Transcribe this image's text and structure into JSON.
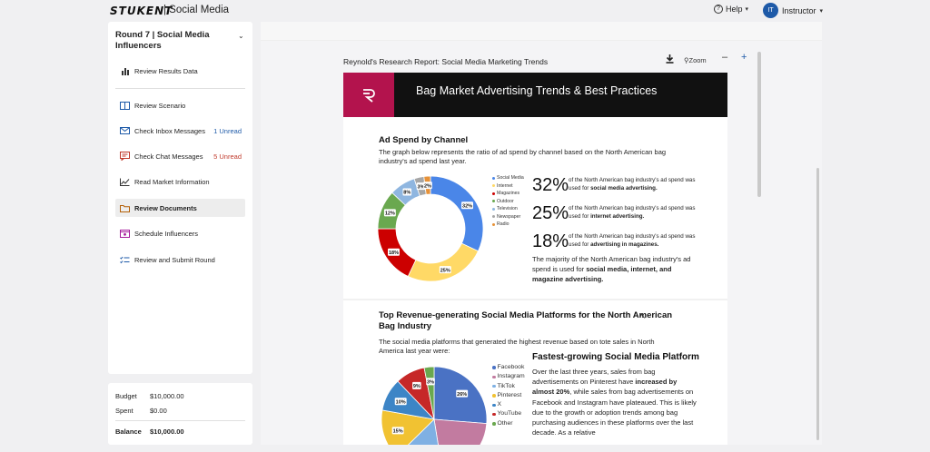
{
  "topbar": {
    "logo": "STUKENT",
    "app_title": "| Social Media",
    "help_label": "Help",
    "user_initials": "IT",
    "user_label": "Instructor"
  },
  "sidebar": {
    "round_title": "Round 7 | Social Media Influencers",
    "items": [
      {
        "label": "Review Results Data",
        "icon": "bar-chart-icon"
      },
      {
        "label": "Review Scenario",
        "icon": "scenario-icon"
      },
      {
        "label": "Check Inbox Messages",
        "count": "1 Unread",
        "icon": "mail-icon"
      },
      {
        "label": "Check Chat Messages",
        "count": "5 Unread",
        "icon": "chat-icon"
      },
      {
        "label": "Read Market Information",
        "icon": "line-chart-icon"
      },
      {
        "label": "Review Documents",
        "icon": "folder-icon"
      },
      {
        "label": "Schedule Influencers",
        "icon": "calendar-icon"
      },
      {
        "label": "Review and Submit Round",
        "icon": "checklist-icon"
      }
    ],
    "colors": {
      "inbox_count": "#1e5aa8",
      "chat_count": "#c0392b"
    }
  },
  "budget": {
    "budget_label": "Budget",
    "budget_value": "$10,000.00",
    "spent_label": "Spent",
    "spent_value": "$0.00",
    "balance_label": "Balance",
    "balance_value": "$10,000.00"
  },
  "document": {
    "title": "Reynold's Research Report: Social Media Marketing Trends",
    "zoom_label": "Zoom",
    "banner_title": "Bag Market Advertising Trends & Best Practices",
    "section1": {
      "title": "Ad Spend by Channel",
      "desc": "The graph below represents the ratio of ad spend by channel based on the North American bag industry's ad spend last year.",
      "stats": [
        {
          "value": "32%",
          "pre": "of the North American bag industry's ad spend was used for ",
          "bold": "social media advertising."
        },
        {
          "value": "25%",
          "pre": "of the North American bag industry's ad spend was used for ",
          "bold": "internet advertising."
        },
        {
          "value": "18%",
          "pre": "of the North American bag industry's ad spend was used for ",
          "bold": "advertising in magazines."
        }
      ],
      "majority_pre": "The majority of the North American bag industry's ad spend is used for ",
      "majority_bold": "social media, internet, and magazine advertising."
    },
    "section2": {
      "title": "Top Revenue-generating Social Media Platforms for the North American Bag Industry",
      "desc": "The social media platforms that generated the highest revenue based on tote sales in North America last year were:",
      "fg_title": "Fastest-growing Social Media Platform",
      "fg_1": "Over the last three years, sales from bag advertisements on Pinterest have ",
      "fg_bold": "increased by almost 20%",
      "fg_2": ", while sales from bag advertisements on Facebook and Instagram have plateaued. This is likely due to the growth or adoption trends among bag purchasing audiences in these platforms over the last decade. As a relative"
    }
  },
  "chart_data": [
    {
      "type": "pie",
      "title": "",
      "categories": [
        "Social Media",
        "Internet",
        "Magazines",
        "Outdoor",
        "Television",
        "Newspaper",
        "Radio"
      ],
      "values": [
        32,
        25,
        18,
        12,
        8,
        3,
        2
      ],
      "labels": [
        "32%",
        "25%",
        "18%",
        "12%",
        "8%",
        "3%",
        "2%"
      ],
      "colors": [
        "#4a86e8",
        "#ffd966",
        "#cc0000",
        "#6aa84f",
        "#8fb6e0",
        "#a6a6a6",
        "#e69138"
      ],
      "legend": "right",
      "donut": true
    },
    {
      "type": "pie",
      "title": "",
      "categories": [
        "Facebook",
        "Instagram",
        "TikTok",
        "Pinterest",
        "X",
        "YouTube",
        "Other"
      ],
      "values": [
        26,
        21,
        15,
        15,
        10,
        9,
        3
      ],
      "labels": [
        "26%",
        "",
        "",
        "15%",
        "10%",
        "9%",
        "3%"
      ],
      "colors": [
        "#4a72c4",
        "#c27ba0",
        "#7fb0e3",
        "#f1c232",
        "#3d85c6",
        "#c62828",
        "#6aa84f"
      ],
      "legend": "right",
      "donut": false
    }
  ]
}
